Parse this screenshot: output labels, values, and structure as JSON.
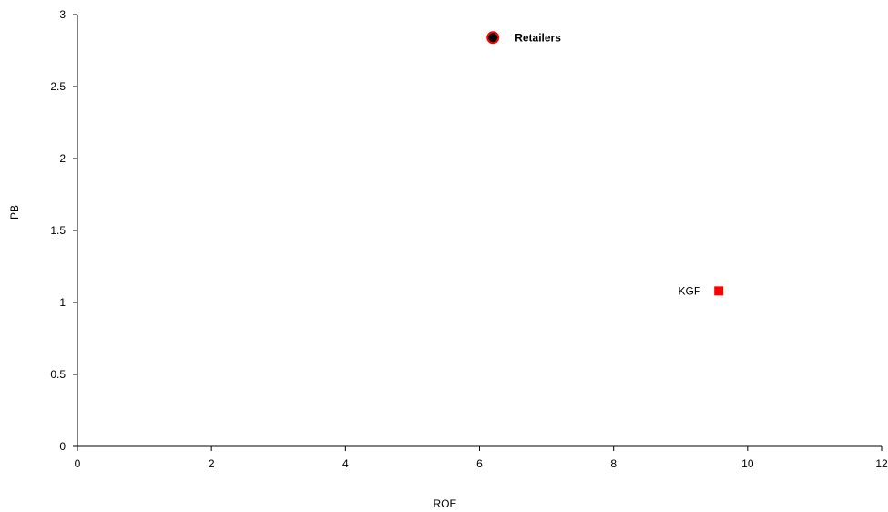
{
  "chart_data": {
    "type": "scatter",
    "title": "",
    "xlabel": "ROE",
    "ylabel": "PB",
    "xlim": [
      0,
      12
    ],
    "ylim": [
      0,
      3
    ],
    "x_ticks": [
      0,
      2,
      4,
      6,
      8,
      10,
      12
    ],
    "y_ticks": [
      0,
      0.5,
      1,
      1.5,
      2,
      2.5,
      3
    ],
    "x_tick_labels": [
      "0",
      "2",
      "4",
      "6",
      "8",
      "10",
      "12"
    ],
    "y_tick_labels": [
      "0",
      "0.5",
      "1",
      "1.5",
      "2",
      "2.5",
      "3"
    ],
    "grid": false,
    "legend": "none",
    "points": [
      {
        "label": "Retailers",
        "x": 6.2,
        "y": 2.84,
        "marker": "circle",
        "fill": "#000000",
        "stroke": "#ff0000",
        "label_position": "right",
        "label_bold": true
      },
      {
        "label": "KGF",
        "x": 9.57,
        "y": 1.08,
        "marker": "square",
        "fill": "#ff0000",
        "stroke": "#ff0000",
        "label_position": "left",
        "label_bold": false
      }
    ],
    "axis_color": "#000000"
  }
}
